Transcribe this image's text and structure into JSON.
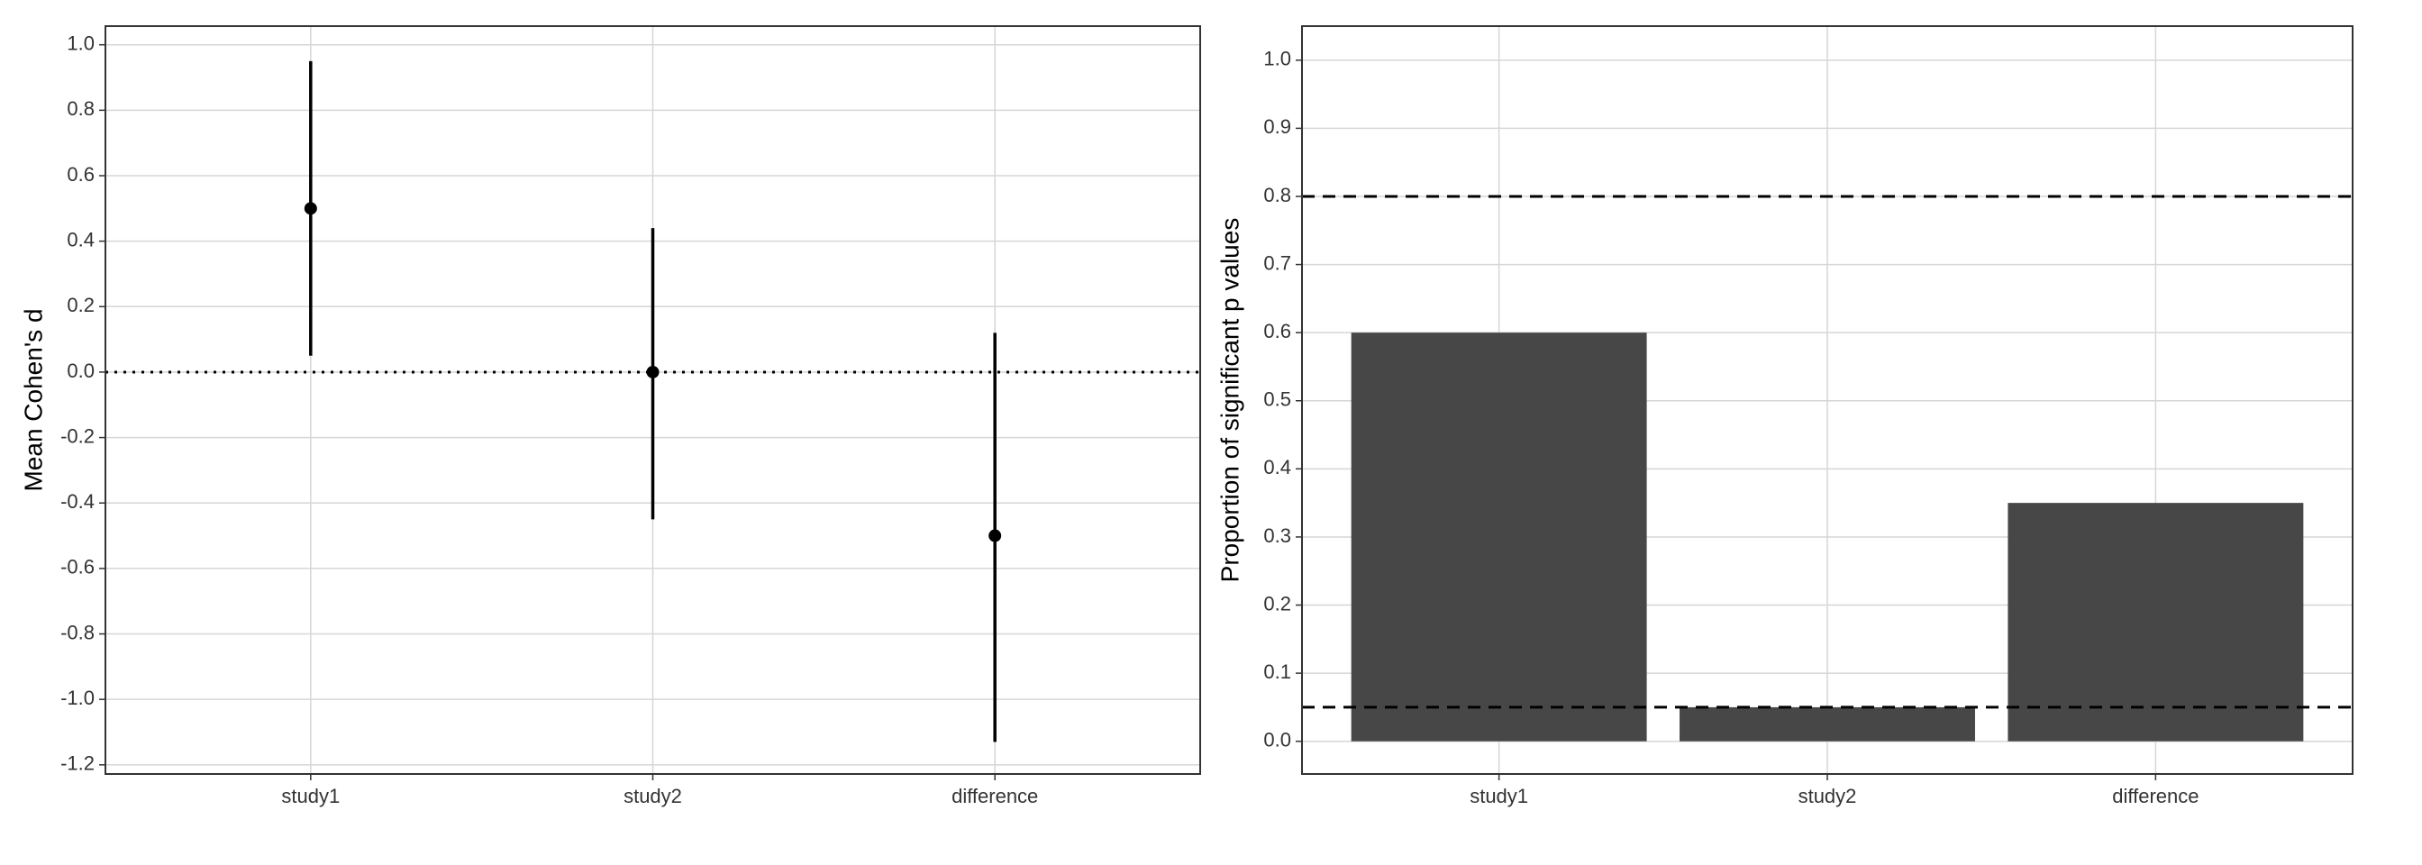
{
  "chart_data": [
    {
      "type": "pointrange",
      "y_label": "Mean Cohen's d",
      "categories": [
        "study1",
        "study2",
        "difference"
      ],
      "values": [
        0.5,
        0.0,
        -0.5
      ],
      "lower": [
        0.05,
        -0.45,
        -1.13
      ],
      "upper": [
        0.95,
        0.44,
        0.12
      ],
      "color": "#000000",
      "ylim": [
        -1.228,
        1.057
      ],
      "yticks": [
        {
          "value": -1.2,
          "label": "-1.2"
        },
        {
          "value": -1,
          "label": "-1.0"
        },
        -0.8,
        -0.6,
        -0.4,
        -0.2,
        {
          "value": 0,
          "label": "0.0"
        },
        0.2,
        0.4,
        0.6,
        0.8,
        {
          "value": 1,
          "label": "1.0"
        }
      ],
      "hlines": [
        {
          "value": 0,
          "style": "dotted"
        }
      ],
      "grid": true
    },
    {
      "type": "bar",
      "y_label": "Proportion of significant p values",
      "categories": [
        "study1",
        "study2",
        "difference"
      ],
      "values": [
        0.6,
        0.05,
        0.35
      ],
      "color": "#474747",
      "ylim": [
        -0.048,
        1.05
      ],
      "yticks": [
        {
          "value": 0,
          "label": "0.0"
        },
        0.1,
        0.2,
        0.3,
        0.4,
        0.5,
        0.6,
        0.7,
        0.8,
        0.9,
        {
          "value": 1,
          "label": "1.0"
        }
      ],
      "hlines": [
        {
          "value": 0.8,
          "style": "dashed"
        },
        {
          "value": 0.05,
          "style": "dashed"
        }
      ],
      "grid": true
    }
  ]
}
